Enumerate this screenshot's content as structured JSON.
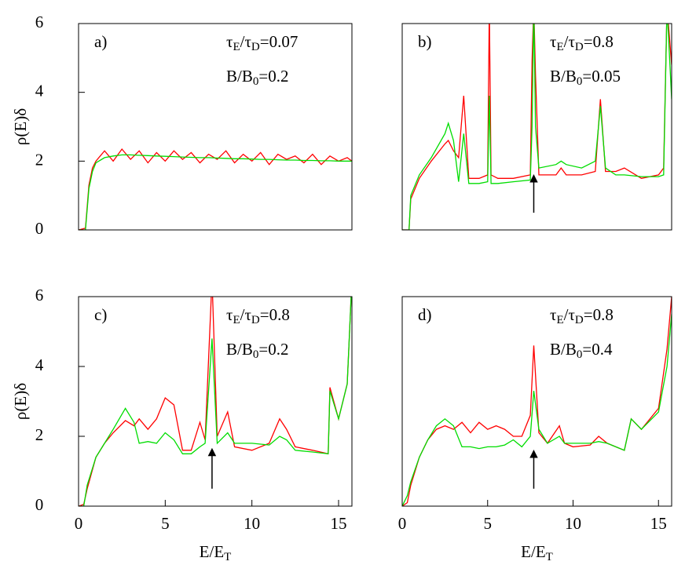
{
  "chart_data": [
    {
      "type": "line",
      "panel_label": "a)",
      "annotations": [
        "τE/τD=0.07",
        "B/B0=0.2"
      ],
      "ylabel": "ρ(E)δ",
      "xlim": [
        0,
        15.77
      ],
      "ylim": [
        0,
        6
      ],
      "yticks": [
        0,
        2,
        4,
        6
      ],
      "x": [
        0,
        0.4,
        0.6,
        0.8,
        1.0,
        1.5,
        2,
        2.5,
        3,
        3.5,
        4,
        4.5,
        5,
        5.5,
        6,
        6.5,
        7,
        7.5,
        8,
        8.5,
        9,
        9.5,
        10,
        10.5,
        11,
        11.5,
        12,
        12.5,
        13,
        13.5,
        14,
        14.5,
        15,
        15.5,
        15.77
      ],
      "series": [
        {
          "color": "#ff0000",
          "values": [
            0,
            0.05,
            1.3,
            1.8,
            2.0,
            2.3,
            2.0,
            2.35,
            2.05,
            2.3,
            1.95,
            2.25,
            2.0,
            2.3,
            2.05,
            2.25,
            1.95,
            2.2,
            2.05,
            2.3,
            1.95,
            2.2,
            2.0,
            2.25,
            1.9,
            2.2,
            2.05,
            2.15,
            1.95,
            2.2,
            1.9,
            2.15,
            2.0,
            2.1,
            2.0
          ]
        },
        {
          "color": "#00dd00",
          "values": [
            0,
            0,
            1.2,
            1.7,
            1.95,
            2.1,
            2.15,
            2.18,
            2.18,
            2.17,
            2.16,
            2.15,
            2.14,
            2.13,
            2.12,
            2.11,
            2.1,
            2.1,
            2.09,
            2.08,
            2.07,
            2.07,
            2.06,
            2.05,
            2.05,
            2.04,
            2.03,
            2.03,
            2.02,
            2.02,
            2.01,
            2.01,
            2.0,
            2.0,
            2.0
          ]
        }
      ]
    },
    {
      "type": "line",
      "panel_label": "b)",
      "annotations": [
        "τE/τD=0.8",
        "B/B0=0.05"
      ],
      "xlim": [
        0,
        15.77
      ],
      "ylim": [
        0,
        6
      ],
      "arrow": {
        "x": 7.7,
        "y": [
          0.5,
          1.5
        ]
      },
      "x": [
        0,
        0.4,
        0.5,
        1,
        1.7,
        2.5,
        2.7,
        3.0,
        3.3,
        3.6,
        3.9,
        4.5,
        5.0,
        5.1,
        5.2,
        5.6,
        6.5,
        7.5,
        7.6,
        7.7,
        7.8,
        8.0,
        9.0,
        9.3,
        9.6,
        10.5,
        11.3,
        11.6,
        11.9,
        12.5,
        13,
        14,
        15,
        15.3,
        15.5,
        15.77
      ],
      "series": [
        {
          "color": "#ff0000",
          "values": [
            0,
            0,
            0.9,
            1.5,
            2.0,
            2.5,
            2.6,
            2.3,
            2.1,
            3.9,
            1.5,
            1.5,
            1.6,
            6.5,
            1.6,
            1.5,
            1.5,
            1.6,
            4.9,
            6.5,
            4.5,
            1.6,
            1.6,
            1.8,
            1.6,
            1.6,
            1.7,
            3.8,
            1.7,
            1.7,
            1.8,
            1.5,
            1.6,
            1.8,
            6.5,
            4.8
          ]
        },
        {
          "color": "#00dd00",
          "values": [
            0,
            0,
            1.0,
            1.6,
            2.1,
            2.8,
            3.1,
            2.6,
            1.4,
            2.8,
            1.35,
            1.35,
            1.4,
            3.9,
            1.35,
            1.35,
            1.4,
            1.45,
            3.0,
            6.5,
            3.0,
            1.8,
            1.9,
            2.0,
            1.9,
            1.8,
            2.0,
            3.6,
            1.8,
            1.6,
            1.6,
            1.55,
            1.55,
            1.6,
            6.5,
            3.8
          ]
        }
      ]
    },
    {
      "type": "line",
      "panel_label": "c)",
      "annotations": [
        "τE/τD=0.8",
        "B/B0=0.2"
      ],
      "ylabel": "ρ(E)δ",
      "xlabel": "E/ET",
      "xlim": [
        0,
        15.77
      ],
      "ylim": [
        0,
        6
      ],
      "yticks": [
        0,
        2,
        4,
        6
      ],
      "xticks": [
        0,
        5,
        10,
        15
      ],
      "arrow": {
        "x": 7.7,
        "y": [
          0.5,
          1.55
        ]
      },
      "x": [
        0,
        0.3,
        0.5,
        1,
        1.5,
        2,
        2.7,
        3.2,
        3.5,
        4,
        4.5,
        5,
        5.5,
        6,
        6.5,
        7,
        7.3,
        7.7,
        8,
        8.6,
        9,
        10,
        11,
        11.6,
        12,
        12.5,
        13.5,
        14.4,
        14.5,
        15,
        15.5,
        15.77
      ],
      "series": [
        {
          "color": "#ff0000",
          "values": [
            0,
            0.05,
            0.5,
            1.4,
            1.8,
            2.1,
            2.45,
            2.3,
            2.5,
            2.2,
            2.5,
            3.1,
            2.9,
            1.6,
            1.6,
            2.4,
            1.9,
            6.5,
            2.0,
            2.7,
            1.7,
            1.6,
            1.8,
            2.5,
            2.2,
            1.7,
            1.6,
            1.5,
            3.4,
            2.5,
            3.5,
            6.5
          ]
        },
        {
          "color": "#00dd00",
          "values": [
            0,
            0,
            0.6,
            1.4,
            1.8,
            2.2,
            2.8,
            2.4,
            1.8,
            1.85,
            1.8,
            2.1,
            1.9,
            1.5,
            1.5,
            1.7,
            1.8,
            4.8,
            1.8,
            2.1,
            1.8,
            1.8,
            1.75,
            2.0,
            1.9,
            1.6,
            1.55,
            1.5,
            3.3,
            2.5,
            3.5,
            6.5
          ]
        }
      ]
    },
    {
      "type": "line",
      "panel_label": "d)",
      "annotations": [
        "τE/τD=0.8",
        "B/B0=0.4"
      ],
      "xlabel": "E/ET",
      "xlim": [
        0,
        15.77
      ],
      "ylim": [
        0,
        6
      ],
      "xticks": [
        0,
        5,
        10,
        15
      ],
      "arrow": {
        "x": 7.7,
        "y": [
          0.5,
          1.5
        ]
      },
      "x": [
        0,
        0.3,
        0.5,
        1,
        1.5,
        2,
        2.5,
        3,
        3.5,
        4,
        4.5,
        5,
        5.5,
        6,
        6.5,
        7,
        7.5,
        7.7,
        8,
        8.5,
        9.2,
        9.5,
        10,
        11,
        11.5,
        12,
        13,
        13.4,
        14,
        15,
        15.5,
        15.77
      ],
      "series": [
        {
          "color": "#ff0000",
          "values": [
            0,
            0.1,
            0.6,
            1.4,
            1.9,
            2.2,
            2.3,
            2.2,
            2.4,
            2.1,
            2.4,
            2.2,
            2.3,
            2.2,
            2.0,
            2.0,
            2.6,
            4.6,
            2.1,
            1.8,
            2.3,
            1.8,
            1.7,
            1.75,
            2.0,
            1.8,
            1.6,
            2.5,
            2.2,
            2.8,
            4.5,
            6.0
          ]
        },
        {
          "color": "#00dd00",
          "values": [
            0,
            0.3,
            0.7,
            1.4,
            1.9,
            2.3,
            2.5,
            2.3,
            1.7,
            1.7,
            1.65,
            1.7,
            1.7,
            1.75,
            1.9,
            1.7,
            2.0,
            3.3,
            2.2,
            1.8,
            2.0,
            1.8,
            1.8,
            1.8,
            1.85,
            1.8,
            1.6,
            2.5,
            2.2,
            2.7,
            4.0,
            5.5
          ]
        }
      ]
    }
  ]
}
